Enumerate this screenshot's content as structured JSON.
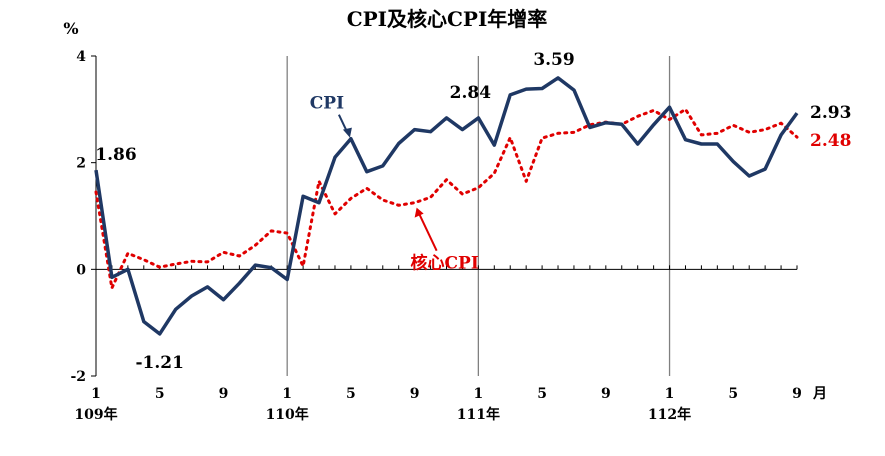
{
  "chart_data": {
    "type": "line",
    "title": "CPI及核心CPI年增率",
    "ylabel": "%",
    "xunit": "月",
    "ylim": [
      -2,
      4
    ],
    "yticks": [
      "4",
      "2",
      "0",
      "-2"
    ],
    "xticks": [
      {
        "index": 0,
        "label": "1"
      },
      {
        "index": 4,
        "label": "5"
      },
      {
        "index": 8,
        "label": "9"
      },
      {
        "index": 12,
        "label": "1"
      },
      {
        "index": 16,
        "label": "5"
      },
      {
        "index": 20,
        "label": "9"
      },
      {
        "index": 24,
        "label": "1"
      },
      {
        "index": 28,
        "label": "5"
      },
      {
        "index": 32,
        "label": "9"
      },
      {
        "index": 36,
        "label": "1"
      },
      {
        "index": 40,
        "label": "5"
      },
      {
        "index": 44,
        "label": "9"
      }
    ],
    "year_labels": [
      {
        "index": 0,
        "label": "109年"
      },
      {
        "index": 12,
        "label": "110年"
      },
      {
        "index": 24,
        "label": "111年"
      },
      {
        "index": 36,
        "label": "112年"
      }
    ],
    "year_dividers": [
      12,
      24,
      36
    ],
    "colors": {
      "cpi": "#1f3864",
      "core": "#e00000",
      "axis": "#000000",
      "divider": "#808080"
    },
    "series": [
      {
        "name": "CPI",
        "values": [
          1.86,
          -0.15,
          0.0,
          -0.98,
          -1.21,
          -0.75,
          -0.5,
          -0.33,
          -0.57,
          -0.26,
          0.08,
          0.03,
          -0.19,
          1.37,
          1.25,
          2.1,
          2.45,
          1.83,
          1.94,
          2.36,
          2.62,
          2.58,
          2.84,
          2.62,
          2.84,
          2.33,
          3.27,
          3.38,
          3.39,
          3.59,
          3.36,
          2.66,
          2.75,
          2.72,
          2.35,
          2.71,
          3.04,
          2.43,
          2.35,
          2.35,
          2.02,
          1.75,
          1.88,
          2.52,
          2.93
        ],
        "end_label": "2.93"
      },
      {
        "name": "核心CPI",
        "values": [
          1.45,
          -0.35,
          0.3,
          0.18,
          0.04,
          0.1,
          0.15,
          0.14,
          0.32,
          0.25,
          0.45,
          0.72,
          0.68,
          0.06,
          1.65,
          1.04,
          1.33,
          1.52,
          1.3,
          1.2,
          1.25,
          1.35,
          1.68,
          1.41,
          1.53,
          1.8,
          2.47,
          1.65,
          2.46,
          2.55,
          2.57,
          2.71,
          2.76,
          2.72,
          2.87,
          2.98,
          2.81,
          3.0,
          2.52,
          2.55,
          2.7,
          2.57,
          2.62,
          2.74,
          2.48
        ],
        "end_label": "2.48"
      }
    ],
    "annotations": [
      {
        "text": "1.86",
        "series": "CPI"
      },
      {
        "text": "-1.21",
        "series": "CPI"
      },
      {
        "text": "2.84",
        "series": "CPI"
      },
      {
        "text": "3.59",
        "series": "CPI"
      }
    ],
    "series_callouts": [
      {
        "text": "CPI",
        "series": "CPI"
      },
      {
        "text": "核心CPI",
        "series": "核心CPI"
      }
    ]
  }
}
